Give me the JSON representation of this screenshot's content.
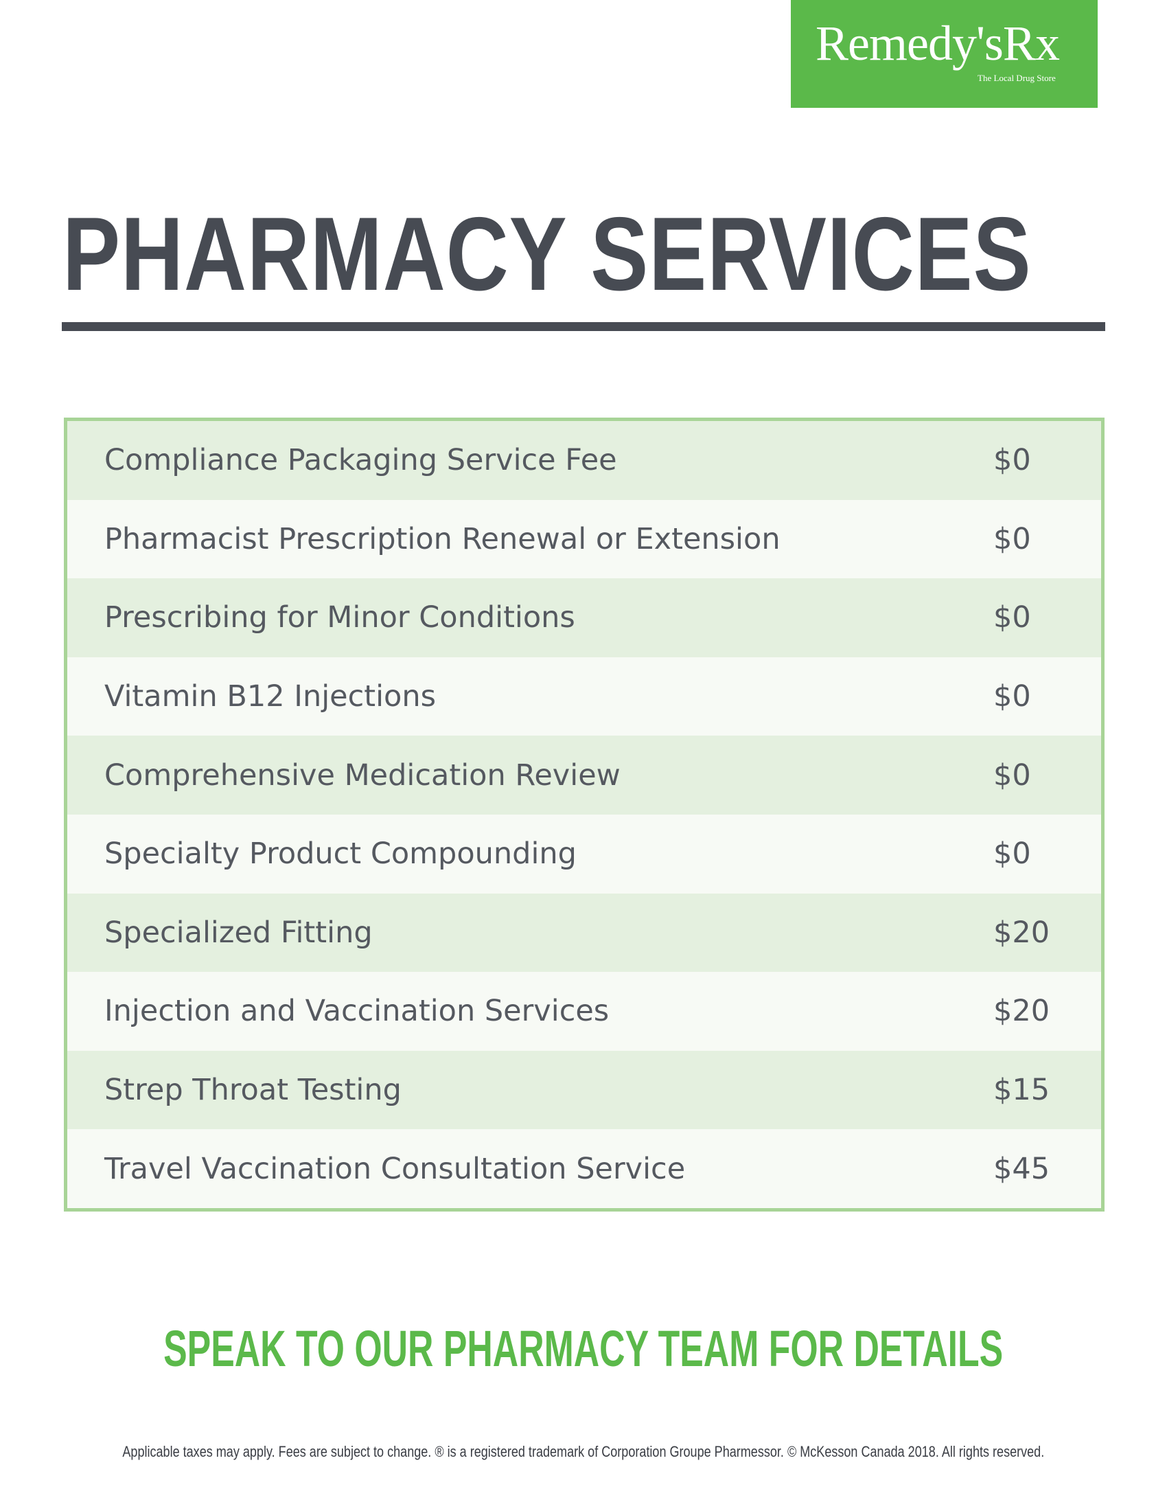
{
  "logo": {
    "name": "Remedy'sRx",
    "tagline": "The Local Drug Store",
    "color": "#5bb94a"
  },
  "title": "PHARMACY SERVICES",
  "services": [
    {
      "name": "Compliance Packaging Service Fee",
      "price": "$0"
    },
    {
      "name": "Pharmacist Prescription Renewal or Extension",
      "price": "$0"
    },
    {
      "name": "Prescribing for Minor Conditions",
      "price": "$0"
    },
    {
      "name": "Vitamin B12 Injections",
      "price": "$0"
    },
    {
      "name": "Comprehensive Medication Review",
      "price": "$0"
    },
    {
      "name": "Specialty Product Compounding",
      "price": "$0"
    },
    {
      "name": "Specialized Fitting",
      "price": "$20"
    },
    {
      "name": "Injection and Vaccination Services",
      "price": "$20"
    },
    {
      "name": "Strep Throat Testing",
      "price": "$15"
    },
    {
      "name": "Travel Vaccination Consultation Service",
      "price": "$45"
    }
  ],
  "cta": "SPEAK TO OUR PHARMACY TEAM FOR DETAILS",
  "footer": "Applicable taxes may apply. Fees are subject to change. ® is a registered trademark of Corporation Groupe Pharmessor. © McKesson Canada 2018. All rights reserved."
}
